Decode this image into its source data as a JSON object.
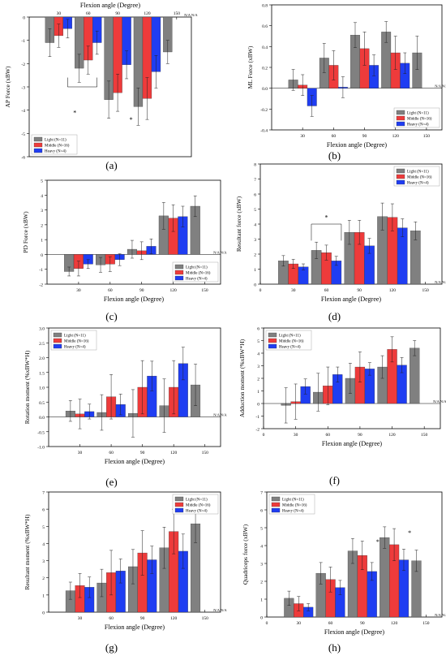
{
  "colors": {
    "light": "#808080",
    "middle": "#ee3b3b",
    "heavy": "#1f3df2",
    "na": "#5a5aff",
    "star": "#d23b3b"
  },
  "legend_names": [
    "Light (N=11)",
    "Middle (N=16)",
    "Heavy (N=4)"
  ],
  "na_text": "N/A N/A",
  "chart_data": [
    {
      "id": "a",
      "type": "bar",
      "caption": "(a)",
      "xlabel": "Flexion angle (Degree)",
      "ylabel": "AP Force (xBW)",
      "categories": [
        "30",
        "60",
        "90",
        "120",
        "150"
      ],
      "ylim": [
        -6,
        0
      ],
      "yticks": [
        0,
        -1,
        -2,
        -3,
        -4,
        -5,
        -6
      ],
      "x_axis_top": true,
      "legend": "bottom-left",
      "series": [
        {
          "name": "Light (N=11)",
          "values": [
            -1.1,
            -2.2,
            -3.55,
            -3.85,
            -1.5
          ],
          "errors": [
            0.6,
            0.6,
            0.8,
            0.8,
            0.5
          ]
        },
        {
          "name": "Middle (N=16)",
          "values": [
            -0.8,
            -1.85,
            -3.25,
            -3.5,
            null
          ],
          "errors": [
            0.5,
            0.6,
            0.8,
            0.9,
            null
          ]
        },
        {
          "name": "Heavy (N=4)",
          "values": [
            -0.5,
            -1.1,
            -2.05,
            -2.35,
            null
          ],
          "errors": [
            0.4,
            0.5,
            0.6,
            0.7,
            null
          ]
        }
      ],
      "annotations": [
        "*",
        "*"
      ]
    },
    {
      "id": "b",
      "type": "bar",
      "caption": "(b)",
      "xlabel": "Flexion angle (Degree)",
      "ylabel": "ML Force (xBW)",
      "categories": [
        "30",
        "60",
        "90",
        "120",
        "150"
      ],
      "ylim": [
        -0.4,
        0.8
      ],
      "yticks": [
        -0.4,
        -0.2,
        0.0,
        0.2,
        0.4,
        0.6,
        0.8
      ],
      "legend": "bottom-right",
      "series": [
        {
          "name": "Light (N=11)",
          "values": [
            0.08,
            0.29,
            0.51,
            0.54,
            0.34
          ],
          "errors": [
            0.1,
            0.14,
            0.12,
            0.1,
            0.16
          ]
        },
        {
          "name": "Middle (N=16)",
          "values": [
            0.03,
            0.22,
            0.38,
            0.34,
            null
          ],
          "errors": [
            0.1,
            0.14,
            0.16,
            0.16,
            null
          ]
        },
        {
          "name": "Heavy (N=4)",
          "values": [
            -0.17,
            0.01,
            0.22,
            0.24,
            null
          ],
          "errors": [
            0.1,
            0.1,
            0.1,
            0.1,
            null
          ]
        }
      ]
    },
    {
      "id": "c",
      "type": "bar",
      "caption": "(c)",
      "xlabel": "Flexion angle (Degree)",
      "ylabel": "PD Force (xBW)",
      "categories": [
        "30",
        "60",
        "90",
        "120",
        "150"
      ],
      "ylim": [
        -2,
        5
      ],
      "yticks": [
        -2,
        -1,
        0,
        1,
        2,
        3,
        4,
        5
      ],
      "legend": "bottom-right",
      "series": [
        {
          "name": "Light (N=11)",
          "values": [
            -1.15,
            -0.7,
            0.35,
            2.6,
            3.25
          ],
          "errors": [
            0.3,
            0.5,
            0.6,
            0.9,
            0.7
          ]
        },
        {
          "name": "Middle (N=16)",
          "values": [
            -0.95,
            -0.65,
            0.25,
            2.45,
            null
          ],
          "errors": [
            0.5,
            0.5,
            0.6,
            0.9,
            null
          ]
        },
        {
          "name": "Heavy (N=4)",
          "values": [
            -0.65,
            -0.35,
            0.55,
            2.55,
            null
          ],
          "errors": [
            0.3,
            0.4,
            0.5,
            0.7,
            null
          ]
        }
      ]
    },
    {
      "id": "d",
      "type": "bar",
      "caption": "(d)",
      "xlabel": "Flexion angle (Degree)",
      "ylabel": "Resultant force (xBW)",
      "categories": [
        "30",
        "60",
        "90",
        "120",
        "150"
      ],
      "xtick_labels": [
        "0",
        "30",
        "60",
        "90",
        "120",
        "150"
      ],
      "ylim": [
        0,
        8
      ],
      "yticks": [
        0,
        1,
        2,
        3,
        4,
        5,
        6,
        7,
        8
      ],
      "legend": "top-right",
      "series": [
        {
          "name": "Light (N=11)",
          "values": [
            1.55,
            2.25,
            3.45,
            4.5,
            3.55
          ],
          "errors": [
            0.35,
            0.55,
            0.8,
            0.9,
            0.6
          ]
        },
        {
          "name": "Middle (N=16)",
          "values": [
            1.35,
            2.1,
            3.45,
            4.45,
            null
          ],
          "errors": [
            0.3,
            0.5,
            0.8,
            0.9,
            null
          ]
        },
        {
          "name": "Heavy (N=4)",
          "values": [
            1.15,
            1.55,
            2.55,
            3.75,
            null
          ],
          "errors": [
            0.2,
            0.3,
            0.5,
            0.6,
            null
          ]
        }
      ],
      "annotations": [
        "*"
      ]
    },
    {
      "id": "e",
      "type": "bar",
      "caption": "(e)",
      "xlabel": "Flexion angle (Degree)",
      "ylabel": "Rotation moment (%xBW*H)",
      "categories": [
        "30",
        "60",
        "90",
        "120",
        "150"
      ],
      "ylim": [
        -1,
        3
      ],
      "yticks": [
        -1.0,
        -0.5,
        0.0,
        0.5,
        1.0,
        1.5,
        2.0,
        2.5,
        3.0
      ],
      "legend": "top-left",
      "series": [
        {
          "name": "Light (N=11)",
          "values": [
            0.2,
            0.15,
            0.12,
            0.38,
            1.08
          ],
          "errors": [
            0.35,
            0.6,
            0.8,
            0.9,
            0.7
          ]
        },
        {
          "name": "Middle (N=16)",
          "values": [
            0.1,
            0.68,
            1.0,
            1.0,
            null
          ],
          "errors": [
            0.5,
            0.75,
            0.9,
            0.9,
            null
          ]
        },
        {
          "name": "Heavy (N=4)",
          "values": [
            0.18,
            0.42,
            1.38,
            1.8,
            null
          ],
          "errors": [
            0.25,
            0.35,
            0.5,
            0.55,
            null
          ]
        }
      ]
    },
    {
      "id": "f",
      "type": "bar",
      "caption": "(f)",
      "xlabel": "Flexion angle (Degree)",
      "ylabel": "Adduction moment (%xBW*H)",
      "categories": [
        "30",
        "60",
        "90",
        "120",
        "150"
      ],
      "xtick_labels": [
        "0",
        "30",
        "60",
        "90",
        "120",
        "150"
      ],
      "ylim": [
        -2,
        6
      ],
      "yticks": [
        -2,
        -1,
        0,
        1,
        2,
        3,
        4,
        5,
        6
      ],
      "legend": "top-left",
      "series": [
        {
          "name": "Light (N=11)",
          "values": [
            -0.15,
            0.9,
            2.0,
            2.9,
            4.4
          ],
          "errors": [
            1.4,
            1.5,
            1.2,
            0.9,
            0.6
          ]
        },
        {
          "name": "Middle (N=16)",
          "values": [
            0.15,
            1.4,
            2.9,
            4.3,
            null
          ],
          "errors": [
            1.4,
            1.5,
            1.2,
            1.0,
            null
          ]
        },
        {
          "name": "Heavy (N=4)",
          "values": [
            1.35,
            2.3,
            2.75,
            3.05,
            null
          ],
          "errors": [
            0.6,
            0.6,
            0.5,
            0.6,
            null
          ]
        }
      ]
    },
    {
      "id": "g",
      "type": "bar",
      "caption": "(g)",
      "xlabel": "Flexion angle (Degree)",
      "ylabel": "Resultant moment (%xBW*H)",
      "categories": [
        "30",
        "60",
        "90",
        "120",
        "150"
      ],
      "ylim": [
        0,
        7
      ],
      "yticks": [
        0,
        1,
        2,
        3,
        4,
        5,
        6,
        7
      ],
      "legend": "top-right",
      "series": [
        {
          "name": "Light (N=11)",
          "values": [
            1.25,
            1.7,
            2.65,
            3.75,
            5.15
          ],
          "errors": [
            0.5,
            0.8,
            1.0,
            1.2,
            1.1
          ]
        },
        {
          "name": "Middle (N=16)",
          "values": [
            1.55,
            2.3,
            3.45,
            4.7,
            null
          ],
          "errors": [
            0.7,
            1.3,
            1.3,
            1.3,
            null
          ]
        },
        {
          "name": "Heavy (N=4)",
          "values": [
            1.45,
            2.4,
            3.05,
            3.55,
            null
          ],
          "errors": [
            0.6,
            0.7,
            0.8,
            1.0,
            null
          ]
        }
      ]
    },
    {
      "id": "h",
      "type": "bar",
      "caption": "(h)",
      "xlabel": "Flexion angle (Degree)",
      "ylabel": "Quadriceps force (xBW)",
      "categories": [
        "30",
        "60",
        "90",
        "120",
        "150"
      ],
      "xtick_labels": [
        "0",
        "30",
        "60",
        "90",
        "120",
        "150"
      ],
      "ylim": [
        0,
        7
      ],
      "yticks": [
        0,
        1,
        2,
        3,
        4,
        5,
        6,
        7
      ],
      "legend": "top-left",
      "series": [
        {
          "name": "Light (N=11)",
          "values": [
            1.05,
            2.45,
            3.7,
            4.45,
            3.15
          ],
          "errors": [
            0.4,
            0.6,
            0.7,
            0.6,
            0.6
          ]
        },
        {
          "name": "Middle (N=16)",
          "values": [
            0.75,
            2.1,
            3.45,
            4.05,
            null
          ],
          "errors": [
            0.4,
            0.7,
            0.8,
            0.9,
            null
          ]
        },
        {
          "name": "Heavy (N=4)",
          "values": [
            0.55,
            1.65,
            2.55,
            3.2,
            null
          ],
          "errors": [
            0.2,
            0.4,
            0.5,
            0.6,
            null
          ]
        }
      ],
      "annotations": [
        "*",
        "*"
      ]
    }
  ]
}
